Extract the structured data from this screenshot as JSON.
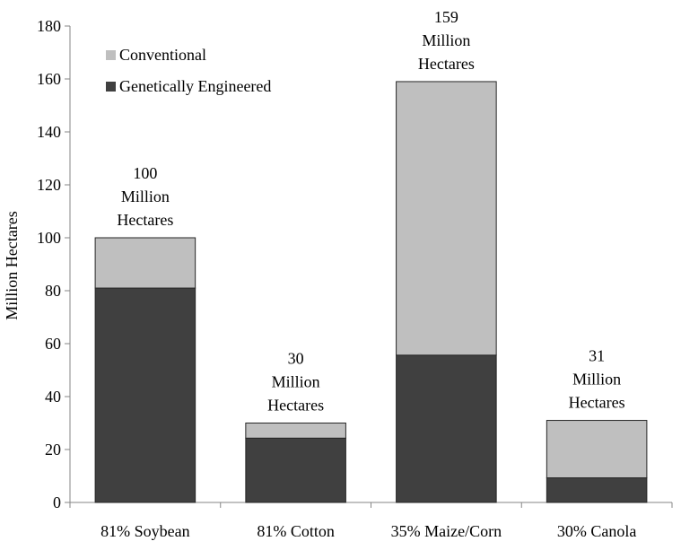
{
  "chart_data": {
    "type": "bar",
    "stacked": true,
    "title": "",
    "xlabel": "",
    "ylabel": "Million Hectares",
    "ylim": [
      0,
      180
    ],
    "yticks": [
      0,
      20,
      40,
      60,
      80,
      100,
      120,
      140,
      160,
      180
    ],
    "categories": [
      "81% Soybean",
      "81% Cotton",
      "35% Maize/Corn",
      "30% Canola"
    ],
    "series": [
      {
        "name": "Genetically Engineered",
        "color": "#404040",
        "values": [
          81,
          24.3,
          55.65,
          9.3
        ]
      },
      {
        "name": "Conventional",
        "color": "#bfbfbf",
        "values": [
          19,
          5.7,
          103.35,
          21.7
        ]
      }
    ],
    "totals": [
      100,
      30,
      159,
      31
    ],
    "bar_labels": [
      [
        "100",
        "Million",
        "Hectares"
      ],
      [
        "30",
        "Million",
        "Hectares"
      ],
      [
        "159",
        "Million",
        "Hectares"
      ],
      [
        "31",
        "Million",
        "Hectares"
      ]
    ],
    "legend": {
      "placement": "top-left",
      "order": [
        "Conventional",
        "Genetically Engineered"
      ]
    }
  }
}
